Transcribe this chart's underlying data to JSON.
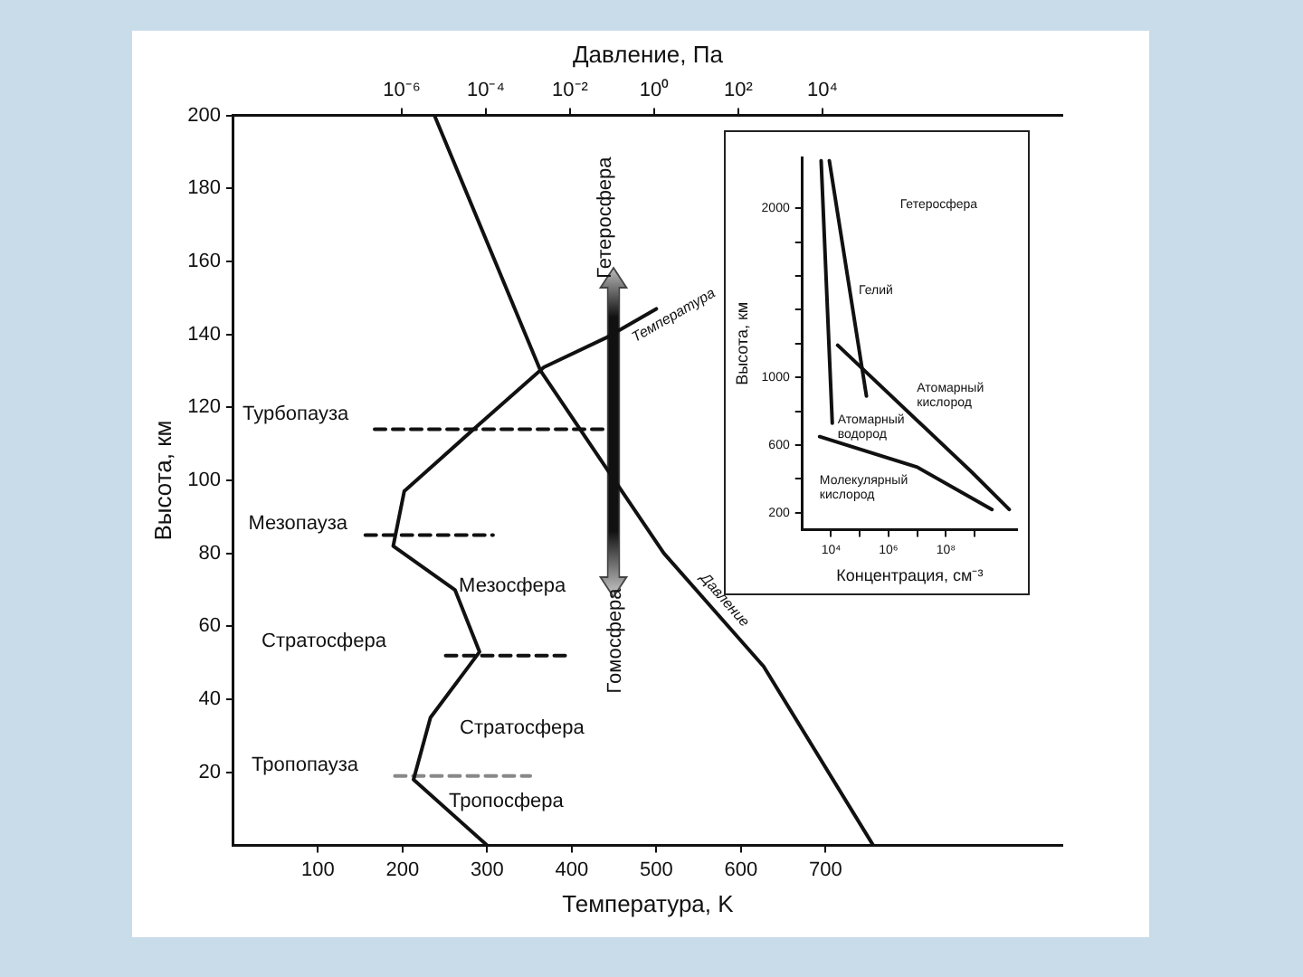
{
  "chart_data": [
    {
      "type": "line",
      "xlabel": "Температура, K",
      "x2label": "Давление, Па",
      "ylabel": "Высота, км",
      "log": "x2",
      "grid": false,
      "legend": false,
      "marker": "none",
      "xlim": [
        0,
        980
      ],
      "xticks": [
        100,
        200,
        300,
        400,
        500,
        600,
        700
      ],
      "x2lim": [
        1e-10,
        5000000000.0
      ],
      "x2ticks": [
        {
          "value": 1e-06,
          "label": "10⁻⁶"
        },
        {
          "value": 0.0001,
          "label": "10⁻⁴"
        },
        {
          "value": 0.01,
          "label": "10⁻²"
        },
        {
          "value": 1,
          "label": "10⁰"
        },
        {
          "value": 100,
          "label": "10²"
        },
        {
          "value": 10000,
          "label": "10⁴"
        }
      ],
      "ylim": [
        0,
        200
      ],
      "yticks": [
        20,
        40,
        60,
        80,
        100,
        120,
        140,
        160,
        180,
        200
      ],
      "series": [
        {
          "name": "Температура",
          "color": "#111111",
          "x": [
            300,
            213,
            233,
            291,
            262,
            189,
            202,
            284,
            367,
            440,
            500
          ],
          "values": [
            0,
            18,
            35,
            53,
            70,
            82,
            97,
            114,
            131,
            139,
            147
          ]
        },
        {
          "name": "Давление",
          "color": "#111111",
          "axis": "x2",
          "x": [
            160000,
            400,
            1.7,
            0.002,
            6e-06
          ],
          "values": [
            0,
            49,
            80,
            130,
            200
          ]
        },
        {
          "color": "#111111",
          "line_style": "dashed",
          "x": [
            167,
            440
          ],
          "values": [
            114,
            114
          ]
        },
        {
          "color": "#111111",
          "line_style": "dashed",
          "x": [
            156,
            307
          ],
          "values": [
            85,
            85
          ]
        },
        {
          "color": "#111111",
          "line_style": "dashed",
          "x": [
            251,
            396
          ],
          "values": [
            52,
            52
          ]
        },
        {
          "color": "#888888",
          "line_style": "dashed",
          "x": [
            191,
            351
          ],
          "values": [
            19,
            19
          ]
        }
      ],
      "annotations": [
        "Турбопауза",
        "Мезопауза",
        "Стратосфера",
        "Тропопауза",
        "Мезосфера",
        "Стратосфера",
        "Тропосфера",
        "Гетеросфера",
        "Гомосфера"
      ]
    },
    {
      "type": "line",
      "xlabel": "Концентрация, см⁻³",
      "ylabel": "Высота, км",
      "log": "x",
      "grid": false,
      "legend": false,
      "marker": "none",
      "xlim": [
        1000,
        30000000000
      ],
      "xticks": [
        {
          "value": 10000,
          "label": "10⁴"
        },
        {
          "value": 100000,
          "label": null
        },
        {
          "value": 1000000,
          "label": "10⁶"
        },
        {
          "value": 10000000,
          "label": null
        },
        {
          "value": 100000000,
          "label": "10⁸"
        },
        {
          "value": 1000000000,
          "label": null
        }
      ],
      "ylim": [
        100,
        2300
      ],
      "yticks": [
        200,
        {
          "value": 400,
          "label": null
        },
        600,
        {
          "value": 800,
          "label": null
        },
        1000,
        {
          "value": 1200,
          "label": null
        },
        {
          "value": 1400,
          "label": null
        },
        {
          "value": 1600,
          "label": null
        },
        {
          "value": 1800,
          "label": null
        },
        2000
      ],
      "series": [
        {
          "name": "Гелий",
          "color": "#111111",
          "x": [
            8700,
            170000
          ],
          "values": [
            2280,
            890
          ]
        },
        {
          "name": "Атомарный кислород",
          "color": "#111111",
          "x": [
            17000,
            800000000,
            16000000000
          ],
          "values": [
            1190,
            440,
            220
          ]
        },
        {
          "name": "Атомарный водород",
          "color": "#111111",
          "x": [
            4500,
            11000
          ],
          "values": [
            2280,
            730
          ]
        },
        {
          "name": "Молекулярный кислород",
          "color": "#111111",
          "x": [
            4000,
            10000000,
            4000000000
          ],
          "values": [
            650,
            470,
            220
          ]
        }
      ],
      "annotations": [
        "Гетеросфера"
      ]
    }
  ]
}
